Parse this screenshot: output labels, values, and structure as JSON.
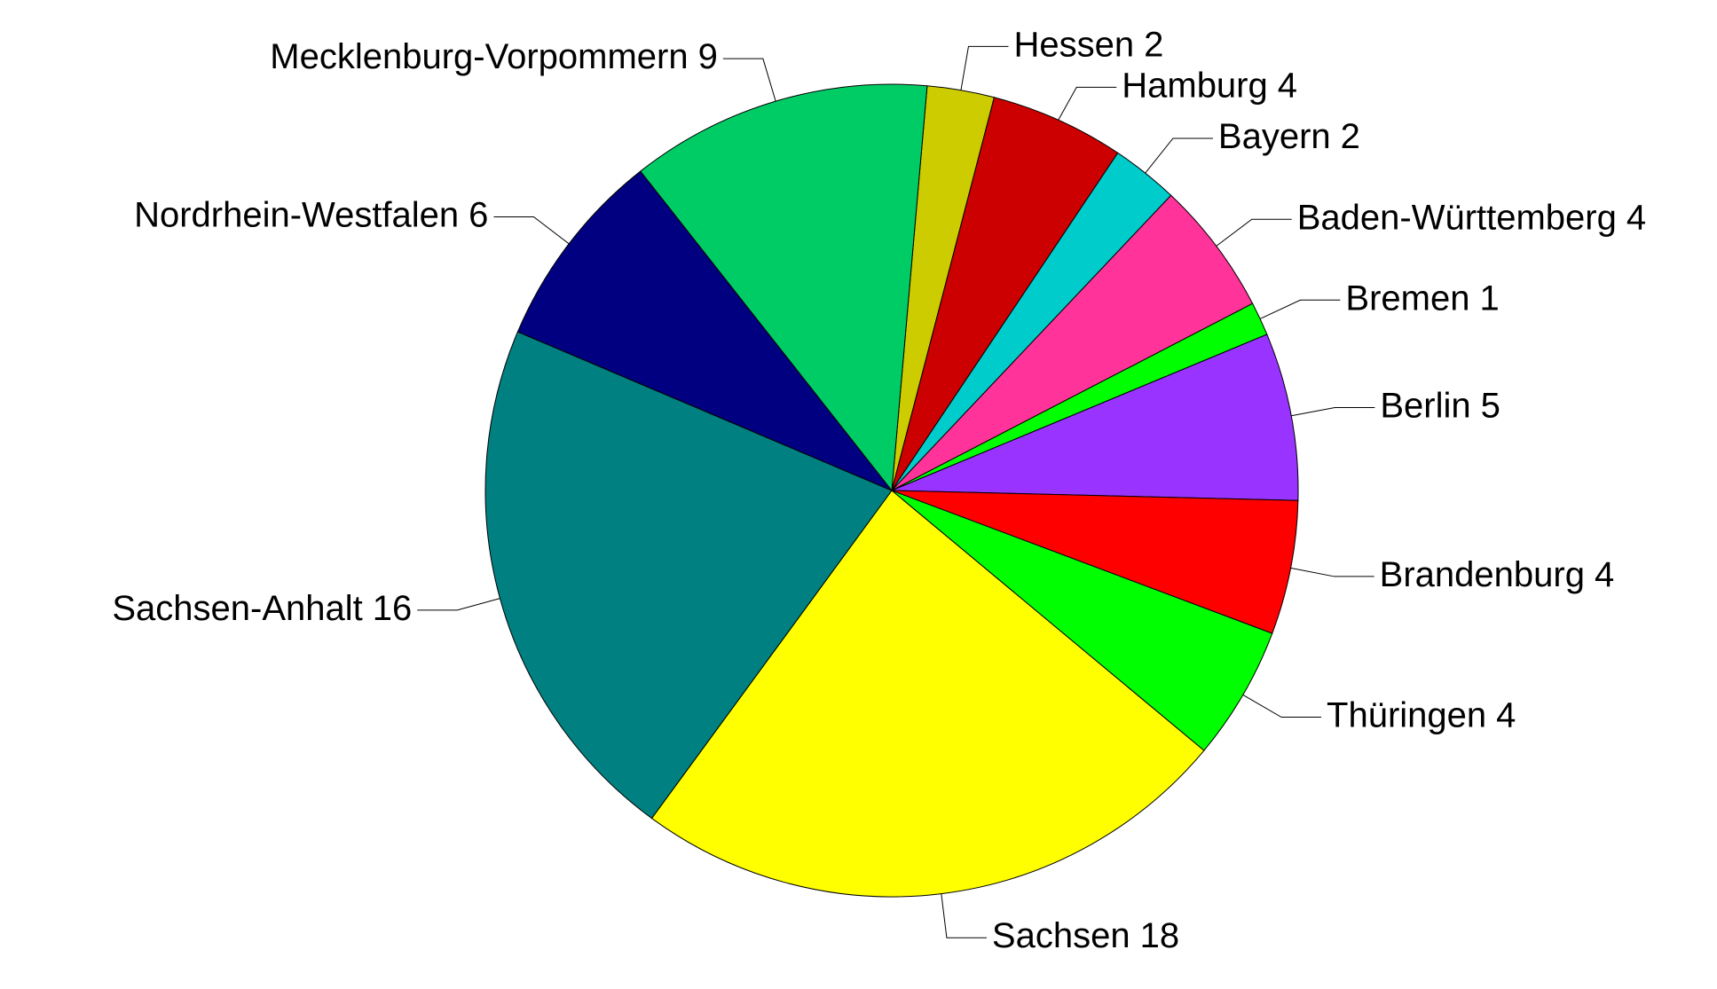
{
  "chart_data": {
    "type": "pie",
    "categories": [
      "Hessen",
      "Hamburg",
      "Bayern",
      "Baden-Württemberg",
      "Bremen",
      "Berlin",
      "Brandenburg",
      "Thüringen",
      "Sachsen",
      "Sachsen-Anhalt",
      "Nordrhein-Westfalen",
      "Mecklenburg-Vorpommern"
    ],
    "values": [
      2,
      4,
      2,
      4,
      1,
      5,
      4,
      4,
      18,
      16,
      6,
      9
    ],
    "colors": [
      "#cccc00",
      "#cc0000",
      "#00cccc",
      "#ff3399",
      "#00ff00",
      "#9933ff",
      "#ff0000",
      "#00ff00",
      "#ffff00",
      "#008080",
      "#000080",
      "#00cc66"
    ]
  }
}
